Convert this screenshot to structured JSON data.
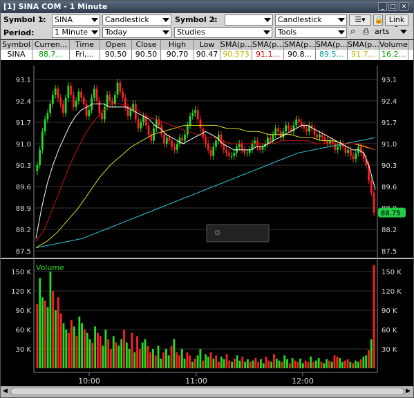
{
  "window": {
    "title": "[1] SINA COM - 1 Minute"
  },
  "toolbar": {
    "symbol1_label": "Symbol 1:",
    "symbol1_value": "SINA",
    "chart_type1": "Candlestick",
    "symbol2_label": "Symbol 2:",
    "symbol2_value": "",
    "chart_type2": "Candlestick",
    "link_label": "Link 1",
    "period_label": "Period:",
    "interval": "1 Minute",
    "range": "Today",
    "studies": "Studies",
    "tools": "Tools",
    "charts": "arts"
  },
  "quote": {
    "headers": [
      "Symbol",
      "Curren...",
      "Time",
      "Open",
      "Close",
      "High",
      "Low",
      "SMA(p...",
      "SMA(p...",
      "SMA(p...",
      "SMA(p...",
      "SMA(p...",
      "Volume"
    ],
    "values": [
      "SINA",
      "88.7...",
      "Fri,...",
      "90.50",
      "90.50",
      "90.70",
      "90.47",
      "90.573",
      "91.1...",
      "90.8...",
      "89.5...",
      "91.7...",
      "16.2..."
    ],
    "colors": [
      "#000000",
      "#00a000",
      "#000000",
      "#000000",
      "#000000",
      "#000000",
      "#000000",
      "#c8b400",
      "#d00000",
      "#000000",
      "#00a0a0",
      "#c8b400",
      "#00a000"
    ]
  },
  "colors": {
    "up": "#22dd22",
    "down": "#ff2020",
    "bg": "#000000",
    "sma_red": "#d01010",
    "sma_yellow": "#e0e020",
    "sma_cyan": "#30c8d8",
    "sma_white": "#ffffff"
  },
  "chart_data": {
    "type": "candlestick",
    "price_panel": {
      "yticks": [
        "93.1",
        "92.4",
        "91.7",
        "91.0",
        "90.3",
        "89.6",
        "88.9",
        "88.2",
        "87.5"
      ],
      "ylim": [
        87.5,
        93.1
      ],
      "last_price_label": "88.75",
      "candles_close": [
        90.3,
        90.8,
        91.4,
        91.8,
        92.0,
        92.3,
        92.6,
        92.8,
        92.5,
        92.3,
        92.0,
        92.5,
        92.9,
        92.6,
        92.2,
        92.4,
        92.7,
        92.5,
        92.3,
        91.9,
        92.1,
        92.5,
        92.8,
        92.4,
        92.0,
        91.8,
        92.2,
        92.6,
        92.4,
        92.3,
        92.6,
        93.0,
        92.7,
        92.5,
        92.2,
        91.9,
        92.1,
        92.3,
        91.8,
        91.5,
        91.7,
        91.9,
        91.6,
        91.3,
        91.1,
        91.5,
        91.8,
        91.6,
        91.3,
        91.0,
        91.2,
        91.1,
        90.9,
        90.8,
        91.0,
        91.2,
        91.1,
        91.3,
        91.6,
        91.9,
        92.0,
        92.1,
        91.8,
        91.5,
        91.2,
        91.0,
        90.8,
        90.6,
        90.9,
        91.1,
        91.3,
        91.0,
        90.8,
        90.7,
        90.6,
        90.6,
        90.7,
        90.9,
        91.0,
        90.8,
        90.7,
        90.7,
        90.8,
        91.0,
        91.1,
        90.9,
        90.8,
        90.9,
        91.0,
        91.2,
        91.1,
        91.3,
        91.5,
        91.4,
        91.2,
        91.4,
        91.6,
        91.5,
        91.4,
        91.6,
        91.8,
        91.7,
        91.6,
        91.5,
        91.4,
        91.6,
        91.5,
        91.3,
        91.2,
        91.3,
        91.2,
        91.1,
        91.0,
        91.1,
        91.0,
        90.8,
        90.9,
        91.0,
        90.9,
        90.7,
        90.8,
        90.6,
        90.5,
        90.7,
        90.9,
        90.7,
        90.5,
        90.3,
        89.8,
        89.4,
        88.75
      ],
      "sma_white": [
        87.9,
        88.9,
        89.7,
        90.3,
        90.8,
        91.2,
        91.6,
        91.9,
        92.1,
        92.2,
        92.3,
        92.3,
        92.3,
        92.2,
        92.2,
        92.2,
        92.2,
        92.1,
        92.0,
        91.9,
        91.8,
        91.6,
        91.5,
        91.3,
        91.2,
        91.1,
        91.0,
        91.1,
        91.2,
        91.3,
        91.4,
        91.3,
        91.2,
        91.0,
        90.9,
        90.8,
        90.8,
        90.8,
        90.8,
        90.9,
        90.9,
        91.0,
        91.1,
        91.2,
        91.3,
        91.4,
        91.5,
        91.6,
        91.6,
        91.5,
        91.4,
        91.3,
        91.2,
        91.1,
        91.0,
        90.9,
        90.8,
        90.8,
        90.7,
        90.2,
        89.5
      ],
      "sma_red": [
        87.8,
        88.2,
        88.9,
        89.6,
        90.3,
        90.9,
        91.4,
        91.8,
        92.1,
        92.3,
        92.3,
        92.2,
        92.1,
        91.9,
        91.8,
        91.7,
        91.6,
        91.5,
        91.4,
        91.3,
        91.2,
        91.2,
        91.1,
        91.0,
        91.0,
        91.0,
        91.0,
        91.0,
        91.0,
        91.1,
        91.1,
        91.1,
        91.1,
        91.0,
        91.0,
        91.0,
        91.0,
        91.0,
        91.0,
        90.9,
        90.8
      ],
      "sma_yellow": [
        87.6,
        87.8,
        88.1,
        88.5,
        88.9,
        89.4,
        89.9,
        90.3,
        90.6,
        90.9,
        91.1,
        91.3,
        91.4,
        91.5,
        91.6,
        91.6,
        91.6,
        91.6,
        91.5,
        91.5,
        91.4,
        91.4,
        91.3,
        91.3,
        91.3,
        91.2,
        91.2,
        91.1,
        91.1,
        91.0,
        91.0,
        90.9,
        90.8
      ],
      "sma_cyan": [
        87.6,
        87.7,
        87.8,
        87.9,
        88.1,
        88.3,
        88.5,
        88.7,
        88.9,
        89.1,
        89.3,
        89.5,
        89.7,
        89.9,
        90.1,
        90.3,
        90.5,
        90.7,
        90.8,
        90.9,
        91.0,
        91.1,
        91.2
      ]
    },
    "volume_panel": {
      "title": "Volume",
      "yticks": [
        "150 K",
        "120 K",
        "90 K",
        "60 K",
        "30 K"
      ],
      "ylim": [
        0,
        165
      ],
      "values": [
        100,
        140,
        110,
        105,
        95,
        150,
        120,
        90,
        110,
        85,
        70,
        60,
        55,
        75,
        65,
        50,
        80,
        70,
        60,
        55,
        45,
        40,
        65,
        55,
        50,
        35,
        60,
        45,
        30,
        50,
        40,
        35,
        45,
        60,
        40,
        30,
        55,
        25,
        50,
        30,
        40,
        45,
        35,
        25,
        30,
        20,
        35,
        15,
        25,
        30,
        20,
        35,
        45,
        25,
        20,
        30,
        15,
        25,
        20,
        10,
        15,
        20,
        30,
        12,
        22,
        18,
        25,
        15,
        20,
        10,
        18,
        14,
        22,
        12,
        10,
        15,
        20,
        12,
        18,
        10,
        14,
        10,
        12,
        16,
        10,
        14,
        8,
        18,
        12,
        10,
        22,
        15,
        12,
        10,
        20,
        14,
        8,
        16,
        12,
        10,
        15,
        8,
        12,
        10,
        18,
        10,
        12,
        16,
        10,
        8,
        14,
        12,
        10,
        20,
        18,
        16,
        10,
        12,
        14,
        10,
        8,
        12,
        10,
        14,
        18,
        20,
        28,
        45,
        160
      ],
      "colors": "alternating"
    },
    "x_ticks": [
      "10:00",
      "11:00",
      "12:00"
    ]
  }
}
